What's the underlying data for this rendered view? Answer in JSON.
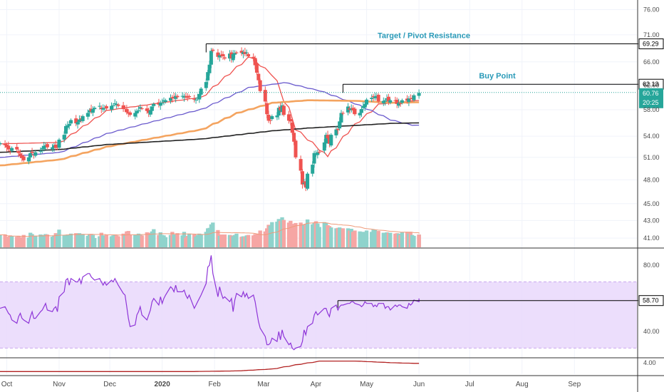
{
  "chart_data": [
    {
      "panel": "price",
      "type": "candlestick",
      "title": "",
      "y_scale": "log",
      "ylim": [
        40.0,
        78.0
      ],
      "y_ticks": [
        "76.00",
        "71.00",
        "66.00",
        "62.00",
        "58.00",
        "54.00",
        "51.00",
        "48.00",
        "45.00",
        "43.00",
        "41.00"
      ],
      "x_ticks": [
        {
          "label": "Oct",
          "date": "2019-10-01",
          "bold": false
        },
        {
          "label": "Nov",
          "date": "2019-11-01",
          "bold": false
        },
        {
          "label": "Dec",
          "date": "2019-12-01",
          "bold": false
        },
        {
          "label": "2020",
          "date": "2020-01-01",
          "bold": true
        },
        {
          "label": "Feb",
          "date": "2020-02-01",
          "bold": false
        },
        {
          "label": "Mar",
          "date": "2020-03-01",
          "bold": false
        },
        {
          "label": "Apr",
          "date": "2020-04-01",
          "bold": false
        },
        {
          "label": "May",
          "date": "2020-05-01",
          "bold": false
        },
        {
          "label": "Jun",
          "date": "2020-06-01",
          "bold": false
        },
        {
          "label": "Jul",
          "date": "2020-07-01",
          "bold": false
        },
        {
          "label": "Aug",
          "date": "2020-08-01",
          "bold": false
        },
        {
          "label": "Sep",
          "date": "2020-09-01",
          "bold": false
        }
      ],
      "x_range": [
        "2019-09-27",
        "2020-10-08"
      ],
      "up_color": "#26a69a",
      "down_color": "#ef5350",
      "candles_start_date": "2019-09-27",
      "candles_close": [
        53.0,
        52.7,
        52.4,
        52.1,
        51.9,
        52.3,
        52.1,
        51.6,
        51.2,
        50.9,
        50.6,
        51.0,
        51.6,
        51.6,
        51.3,
        51.7,
        51.9,
        52.3,
        52.6,
        52.7,
        52.4,
        52.4,
        52.7,
        52.3,
        52.5,
        53.5,
        54.2,
        55.5,
        55.6,
        55.8,
        56.4,
        55.9,
        56.1,
        56.5,
        56.5,
        57.0,
        57.5,
        57.9,
        57.7,
        58.1,
        58.3,
        58.6,
        58.1,
        58.2,
        58.3,
        58.2,
        58.6,
        58.7,
        59.0,
        58.9,
        58.6,
        58.1,
        58.3,
        57.6,
        57.4,
        57.2,
        57.5,
        57.8,
        57.9,
        58.4,
        58.2,
        57.8,
        57.5,
        57.9,
        58.5,
        58.9,
        58.8,
        59.1,
        59.1,
        59.5,
        59.5,
        59.9,
        59.8,
        59.9,
        60.2,
        60.0,
        60.2,
        60.2,
        60.1,
        59.9,
        60.0,
        59.6,
        59.6,
        59.9,
        60.5,
        61.4,
        62.5,
        64.2,
        65.5,
        68.0,
        68.0,
        66.9,
        67.2,
        67.1,
        67.0,
        66.6,
        67.5,
        66.6,
        67.4,
        67.6,
        67.7,
        67.6,
        67.8,
        67.4,
        67.7,
        67.0,
        66.6,
        65.4,
        64.1,
        62.8,
        61.0,
        59.3,
        57.3,
        56.3,
        56.3,
        57.0,
        57.1,
        58.3,
        57.9,
        58.7,
        57.2,
        56.3,
        56.2,
        54.5,
        53.2,
        51.0,
        49.2,
        47.4,
        47.6,
        47.0,
        48.8,
        50.0,
        51.6,
        51.4,
        51.7,
        51.7,
        53.1,
        54.2,
        53.7,
        52.9,
        54.2,
        55.0,
        54.9,
        56.2,
        57.5,
        57.4,
        58.5,
        58.0,
        58.2,
        57.9,
        57.3,
        57.5,
        58.1,
        58.6,
        58.9,
        59.6,
        59.9,
        60.0,
        60.1,
        60.2,
        59.3,
        59.4,
        59.5,
        59.8,
        59.3,
        59.5,
        59.4,
        58.9,
        59.1,
        59.0,
        59.5,
        59.4,
        59.8,
        59.7,
        59.8,
        60.3,
        60.7
      ],
      "candles_highlow_pct": 1.1,
      "volume": {
        "ylim": [
          0,
          100
        ],
        "values": [
          28,
          29,
          24,
          21,
          27,
          25,
          24,
          25,
          23,
          21,
          28,
          22,
          33,
          30,
          25,
          26,
          29,
          24,
          28,
          30,
          29,
          24,
          27,
          32,
          29,
          40,
          28,
          28,
          29,
          29,
          31,
          32,
          29,
          32,
          28,
          30,
          26,
          29,
          30,
          28,
          21,
          25,
          33,
          27,
          27,
          28,
          25,
          27,
          29,
          27,
          25,
          31,
          28,
          36,
          37,
          28,
          28,
          28,
          31,
          29,
          27,
          34,
          33,
          28,
          36,
          41,
          28,
          34,
          28,
          27,
          23,
          28,
          35,
          29,
          29,
          32,
          27,
          35,
          22,
          26,
          31,
          29,
          24,
          28,
          31,
          30,
          35,
          43,
          44,
          52,
          56,
          39,
          26,
          29,
          27,
          29,
          28,
          27,
          25,
          28,
          31,
          24,
          25,
          24,
          27,
          28,
          27,
          30,
          29,
          31,
          38,
          36,
          43,
          51,
          49,
          57,
          58,
          64,
          60,
          68,
          62,
          56,
          60,
          53,
          44,
          55,
          56,
          47,
          51,
          53,
          63,
          52,
          55,
          59,
          54,
          46,
          57,
          55,
          50,
          48,
          45,
          43,
          44,
          45,
          43,
          43,
          43,
          38,
          42,
          35,
          38,
          36,
          35,
          33,
          35,
          38,
          35,
          40,
          39,
          36,
          37,
          33,
          33,
          34,
          33,
          33,
          31,
          32,
          31,
          28,
          34,
          35,
          31,
          35,
          28,
          26,
          29,
          27,
          29,
          24
        ],
        "ma_color": "#ef9a7a"
      },
      "moving_averages": [
        {
          "color": "#ef5350",
          "values_sparse": [
            [
              0,
              52.9
            ],
            [
              25,
              53.1
            ],
            [
              45,
              57.9
            ],
            [
              85,
              60.0
            ],
            [
              105,
              66.9
            ],
            [
              115,
              63.6
            ],
            [
              125,
              54.9
            ],
            [
              138,
              51.1
            ],
            [
              148,
              55.2
            ],
            [
              160,
              58.9
            ],
            [
              180,
              59.6
            ]
          ]
        },
        {
          "color": "#6a5acd",
          "values_sparse": [
            [
              0,
              51.0
            ],
            [
              25,
              51.7
            ],
            [
              45,
              54.4
            ],
            [
              85,
              58.1
            ],
            [
              105,
              61.6
            ],
            [
              120,
              62.4
            ],
            [
              135,
              61.0
            ],
            [
              150,
              58.9
            ],
            [
              165,
              56.4
            ],
            [
              174,
              55.6
            ],
            [
              180,
              55.7
            ]
          ]
        },
        {
          "color": "#f4a460",
          "values_sparse": [
            [
              0,
              49.9
            ],
            [
              25,
              50.7
            ],
            [
              45,
              52.5
            ],
            [
              85,
              55.0
            ],
            [
              100,
              57.5
            ],
            [
              115,
              59.1
            ],
            [
              130,
              59.5
            ],
            [
              150,
              59.4
            ],
            [
              165,
              59.1
            ],
            [
              180,
              59.2
            ]
          ]
        },
        {
          "color": "#222222",
          "values_sparse": [
            [
              0,
              51.7
            ],
            [
              25,
              52.1
            ],
            [
              45,
              52.8
            ],
            [
              85,
              53.6
            ],
            [
              115,
              54.8
            ],
            [
              130,
              55.2
            ],
            [
              150,
              55.6
            ],
            [
              165,
              55.9
            ],
            [
              180,
              56.0
            ]
          ]
        }
      ],
      "levels": [
        {
          "label": "Target / Pivot Resistance",
          "value": 69.29,
          "tag": "69.29",
          "from_date": "2020-01-27",
          "tag_color": "#ffffff",
          "tag_text": "#000000",
          "tag_border": "#000000"
        },
        {
          "label": "Buy Point",
          "value": 62.13,
          "tag": "62.13",
          "from_date": "2020-04-17",
          "tag_color": "#ffffff",
          "tag_text": "#000000",
          "tag_border": "#000000"
        }
      ],
      "last_price": {
        "value": 60.76,
        "tag": "60.76",
        "countdown": "20:25",
        "color": "#26a69a"
      }
    },
    {
      "panel": "rsi",
      "type": "line",
      "y_ticks": [
        "80.00",
        "40.00"
      ],
      "ylim": [
        25,
        90
      ],
      "band": [
        70,
        30
      ],
      "band_color": "#e9d8fb",
      "line_color": "#8e35d8",
      "values": [
        54,
        55,
        53,
        51,
        50,
        47,
        45,
        49,
        51,
        48,
        47,
        45,
        49,
        52,
        48,
        48,
        52,
        53,
        55,
        57,
        53,
        52,
        54,
        55,
        52,
        61,
        64,
        71,
        72,
        68,
        72,
        70,
        70,
        72,
        69,
        73,
        75,
        75,
        73,
        72,
        71,
        72,
        70,
        68,
        70,
        68,
        71,
        70,
        72,
        70,
        68,
        63,
        62,
        55,
        48,
        43,
        44,
        50,
        52,
        55,
        50,
        47,
        50,
        53,
        58,
        60,
        56,
        61,
        57,
        60,
        62,
        67,
        66,
        64,
        68,
        64,
        64,
        65,
        62,
        60,
        62,
        54,
        56,
        58,
        60,
        62,
        69,
        79,
        80,
        86,
        75,
        61,
        67,
        63,
        60,
        61,
        58,
        60,
        52,
        59,
        63,
        61,
        64,
        61,
        63,
        60,
        62,
        58,
        52,
        46,
        42,
        37,
        32,
        32,
        33,
        36,
        34,
        40,
        35,
        41,
        37,
        32,
        33,
        30,
        29,
        30,
        31,
        34,
        41,
        38,
        43,
        45,
        50,
        52,
        50,
        51,
        54,
        54,
        51,
        49,
        54,
        56,
        53,
        55,
        56,
        56,
        57,
        57,
        58,
        58,
        57,
        56,
        55,
        56,
        58,
        57,
        57,
        55,
        56,
        55,
        57,
        57,
        54,
        55,
        55,
        53,
        56,
        55,
        56,
        56,
        55,
        54,
        57,
        56,
        57,
        59,
        58,
        58,
        59,
        60
      ],
      "level": {
        "value": 58.7,
        "tag": "58.70",
        "from_date": "2020-04-14"
      }
    },
    {
      "panel": "indicator",
      "type": "line",
      "y_ticks": [
        "4.00"
      ],
      "line_color": "#b22222",
      "values_sparse": [
        [
          0,
          1.3
        ],
        [
          40,
          1.3
        ],
        [
          80,
          1.3
        ],
        [
          100,
          1.5
        ],
        [
          115,
          2.1
        ],
        [
          125,
          3.4
        ],
        [
          135,
          4.5
        ],
        [
          150,
          4.5
        ],
        [
          165,
          4.0
        ],
        [
          175,
          3.8
        ],
        [
          180,
          3.8
        ]
      ]
    }
  ]
}
